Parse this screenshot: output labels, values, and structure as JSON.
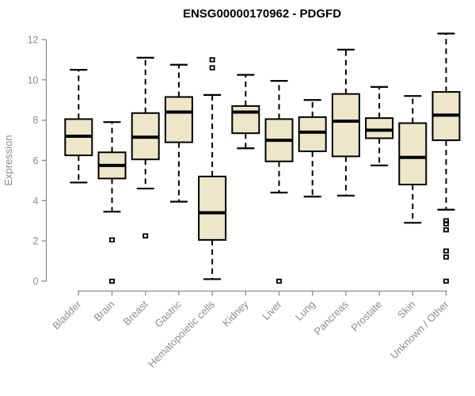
{
  "title": "ENSG00000170962 - PDGFD",
  "colors": {
    "background": "#ffffff",
    "box_fill": "#ede6c8",
    "box_stroke": "#000000",
    "median": "#000000",
    "whisker": "#000000",
    "outlier": "#000000",
    "axis": "#8c8c8c",
    "tick_label": "#8c8c8c",
    "title_color": "#000000"
  },
  "chart_data": {
    "type": "boxplot",
    "title": "ENSG00000170962 - PDGFD",
    "xlabel": "",
    "ylabel": "Expression",
    "ylim": [
      0,
      12
    ],
    "yticks": [
      0,
      2,
      4,
      6,
      8,
      10,
      12
    ],
    "grid": false,
    "legend": "none",
    "categories": [
      "Bladder",
      "Brain",
      "Breast",
      "Gastric",
      "Hematopoietic cells",
      "Kidney",
      "Liver",
      "Lung",
      "Pancreas",
      "Prostate",
      "Skin",
      "Unknown / Other"
    ],
    "series": [
      {
        "name": "Bladder",
        "whisker_low": 4.9,
        "q1": 6.25,
        "median": 7.2,
        "q3": 8.05,
        "whisker_high": 10.5,
        "outliers": []
      },
      {
        "name": "Brain",
        "whisker_low": 3.45,
        "q1": 5.1,
        "median": 5.75,
        "q3": 6.4,
        "whisker_high": 7.9,
        "outliers": [
          2.05,
          0.0
        ]
      },
      {
        "name": "Breast",
        "whisker_low": 4.6,
        "q1": 6.05,
        "median": 7.15,
        "q3": 8.35,
        "whisker_high": 11.1,
        "outliers": [
          2.25
        ]
      },
      {
        "name": "Gastric",
        "whisker_low": 3.95,
        "q1": 6.9,
        "median": 8.4,
        "q3": 9.15,
        "whisker_high": 10.75,
        "outliers": []
      },
      {
        "name": "Hematopoietic cells",
        "whisker_low": 0.1,
        "q1": 2.05,
        "median": 3.4,
        "q3": 5.2,
        "whisker_high": 9.25,
        "outliers": [
          11.0,
          10.6
        ]
      },
      {
        "name": "Kidney",
        "whisker_low": 6.6,
        "q1": 7.35,
        "median": 8.4,
        "q3": 8.7,
        "whisker_high": 10.25,
        "outliers": []
      },
      {
        "name": "Liver",
        "whisker_low": 4.4,
        "q1": 5.95,
        "median": 7.0,
        "q3": 8.05,
        "whisker_high": 9.95,
        "outliers": [
          0.0
        ]
      },
      {
        "name": "Lung",
        "whisker_low": 4.2,
        "q1": 6.45,
        "median": 7.4,
        "q3": 8.15,
        "whisker_high": 9.0,
        "outliers": []
      },
      {
        "name": "Pancreas",
        "whisker_low": 4.25,
        "q1": 6.2,
        "median": 7.95,
        "q3": 9.3,
        "whisker_high": 11.5,
        "outliers": []
      },
      {
        "name": "Prostate",
        "whisker_low": 5.75,
        "q1": 7.1,
        "median": 7.5,
        "q3": 8.1,
        "whisker_high": 9.65,
        "outliers": []
      },
      {
        "name": "Skin",
        "whisker_low": 2.9,
        "q1": 4.8,
        "median": 6.15,
        "q3": 7.85,
        "whisker_high": 9.2,
        "outliers": []
      },
      {
        "name": "Unknown / Other",
        "whisker_low": 3.55,
        "q1": 7.0,
        "median": 8.25,
        "q3": 9.4,
        "whisker_high": 12.3,
        "outliers": [
          3.0,
          2.85,
          2.55,
          1.5,
          1.2,
          0.0
        ]
      }
    ]
  }
}
